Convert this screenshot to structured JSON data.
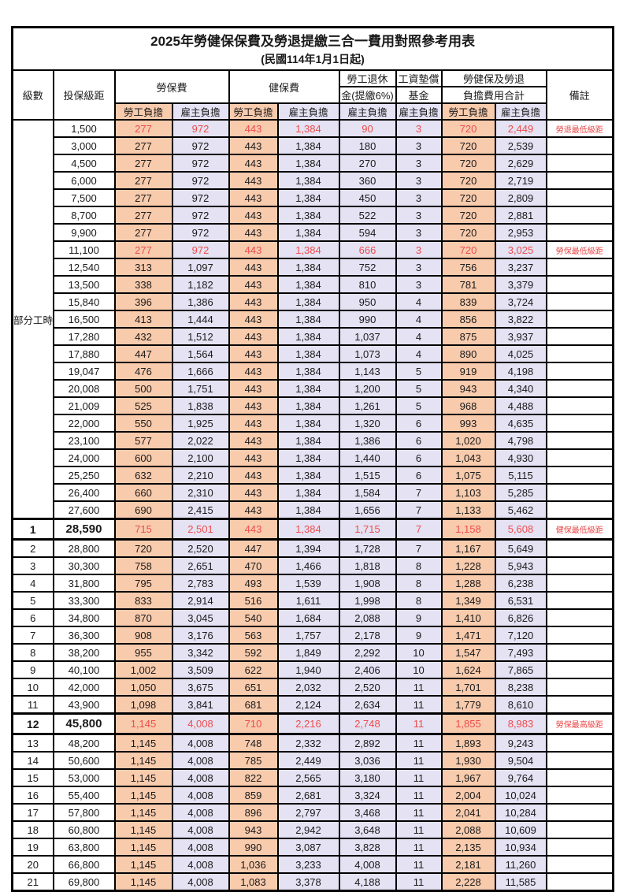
{
  "title": "2025年勞健保保費及勞退提繳三合一費用對照參考用表",
  "subtitle": "(民國114年1月1日起)",
  "colors": {
    "employee_col_bg": "#f8cbad",
    "employer_col_bg": "#e4e2f3",
    "highlight_text": "#ee4d4d",
    "border": "#000000"
  },
  "header": {
    "level": "級數",
    "bracket": "投保級距",
    "labor_insurance": "勞保費",
    "health_insurance": "健保費",
    "pension_line1": "勞工退休",
    "pension_line2": "金(提繳6%)",
    "wage_fund_line1": "工資墊償",
    "wage_fund_line2": "基金",
    "total_line1": "勞健保及勞退",
    "total_line2": "負擔費用合計",
    "remark": "備註",
    "employee_burden": "勞工負擔",
    "employer_burden": "雇主負擔"
  },
  "part_time_label": "部分工時",
  "part_time_rowspan": 23,
  "rows": [
    {
      "bracket": "1,500",
      "li_emp": "277",
      "li_er": "972",
      "hi_emp": "443",
      "hi_er": "1,384",
      "pension": "90",
      "fund": "3",
      "tot_emp": "720",
      "tot_er": "2,449",
      "remark": "勞退最低級距",
      "red": true,
      "special": false
    },
    {
      "bracket": "3,000",
      "li_emp": "277",
      "li_er": "972",
      "hi_emp": "443",
      "hi_er": "1,384",
      "pension": "180",
      "fund": "3",
      "tot_emp": "720",
      "tot_er": "2,539",
      "remark": "",
      "red": false,
      "special": false
    },
    {
      "bracket": "4,500",
      "li_emp": "277",
      "li_er": "972",
      "hi_emp": "443",
      "hi_er": "1,384",
      "pension": "270",
      "fund": "3",
      "tot_emp": "720",
      "tot_er": "2,629",
      "remark": "",
      "red": false,
      "special": false
    },
    {
      "bracket": "6,000",
      "li_emp": "277",
      "li_er": "972",
      "hi_emp": "443",
      "hi_er": "1,384",
      "pension": "360",
      "fund": "3",
      "tot_emp": "720",
      "tot_er": "2,719",
      "remark": "",
      "red": false,
      "special": false
    },
    {
      "bracket": "7,500",
      "li_emp": "277",
      "li_er": "972",
      "hi_emp": "443",
      "hi_er": "1,384",
      "pension": "450",
      "fund": "3",
      "tot_emp": "720",
      "tot_er": "2,809",
      "remark": "",
      "red": false,
      "special": false
    },
    {
      "bracket": "8,700",
      "li_emp": "277",
      "li_er": "972",
      "hi_emp": "443",
      "hi_er": "1,384",
      "pension": "522",
      "fund": "3",
      "tot_emp": "720",
      "tot_er": "2,881",
      "remark": "",
      "red": false,
      "special": false
    },
    {
      "bracket": "9,900",
      "li_emp": "277",
      "li_er": "972",
      "hi_emp": "443",
      "hi_er": "1,384",
      "pension": "594",
      "fund": "3",
      "tot_emp": "720",
      "tot_er": "2,953",
      "remark": "",
      "red": false,
      "special": false
    },
    {
      "bracket": "11,100",
      "li_emp": "277",
      "li_er": "972",
      "hi_emp": "443",
      "hi_er": "1,384",
      "pension": "666",
      "fund": "3",
      "tot_emp": "720",
      "tot_er": "3,025",
      "remark": "勞保最低級距",
      "red": true,
      "special": false
    },
    {
      "bracket": "12,540",
      "li_emp": "313",
      "li_er": "1,097",
      "hi_emp": "443",
      "hi_er": "1,384",
      "pension": "752",
      "fund": "3",
      "tot_emp": "756",
      "tot_er": "3,237",
      "remark": "",
      "red": false,
      "special": false
    },
    {
      "bracket": "13,500",
      "li_emp": "338",
      "li_er": "1,182",
      "hi_emp": "443",
      "hi_er": "1,384",
      "pension": "810",
      "fund": "3",
      "tot_emp": "781",
      "tot_er": "3,379",
      "remark": "",
      "red": false,
      "special": false
    },
    {
      "bracket": "15,840",
      "li_emp": "396",
      "li_er": "1,386",
      "hi_emp": "443",
      "hi_er": "1,384",
      "pension": "950",
      "fund": "4",
      "tot_emp": "839",
      "tot_er": "3,724",
      "remark": "",
      "red": false,
      "special": false
    },
    {
      "bracket": "16,500",
      "li_emp": "413",
      "li_er": "1,444",
      "hi_emp": "443",
      "hi_er": "1,384",
      "pension": "990",
      "fund": "4",
      "tot_emp": "856",
      "tot_er": "3,822",
      "remark": "",
      "red": false,
      "special": false
    },
    {
      "bracket": "17,280",
      "li_emp": "432",
      "li_er": "1,512",
      "hi_emp": "443",
      "hi_er": "1,384",
      "pension": "1,037",
      "fund": "4",
      "tot_emp": "875",
      "tot_er": "3,937",
      "remark": "",
      "red": false,
      "special": false
    },
    {
      "bracket": "17,880",
      "li_emp": "447",
      "li_er": "1,564",
      "hi_emp": "443",
      "hi_er": "1,384",
      "pension": "1,073",
      "fund": "4",
      "tot_emp": "890",
      "tot_er": "4,025",
      "remark": "",
      "red": false,
      "special": false
    },
    {
      "bracket": "19,047",
      "li_emp": "476",
      "li_er": "1,666",
      "hi_emp": "443",
      "hi_er": "1,384",
      "pension": "1,143",
      "fund": "5",
      "tot_emp": "919",
      "tot_er": "4,198",
      "remark": "",
      "red": false,
      "special": false
    },
    {
      "bracket": "20,008",
      "li_emp": "500",
      "li_er": "1,751",
      "hi_emp": "443",
      "hi_er": "1,384",
      "pension": "1,200",
      "fund": "5",
      "tot_emp": "943",
      "tot_er": "4,340",
      "remark": "",
      "red": false,
      "special": false
    },
    {
      "bracket": "21,009",
      "li_emp": "525",
      "li_er": "1,838",
      "hi_emp": "443",
      "hi_er": "1,384",
      "pension": "1,261",
      "fund": "5",
      "tot_emp": "968",
      "tot_er": "4,488",
      "remark": "",
      "red": false,
      "special": false
    },
    {
      "bracket": "22,000",
      "li_emp": "550",
      "li_er": "1,925",
      "hi_emp": "443",
      "hi_er": "1,384",
      "pension": "1,320",
      "fund": "6",
      "tot_emp": "993",
      "tot_er": "4,635",
      "remark": "",
      "red": false,
      "special": false
    },
    {
      "bracket": "23,100",
      "li_emp": "577",
      "li_er": "2,022",
      "hi_emp": "443",
      "hi_er": "1,384",
      "pension": "1,386",
      "fund": "6",
      "tot_emp": "1,020",
      "tot_er": "4,798",
      "remark": "",
      "red": false,
      "special": false
    },
    {
      "bracket": "24,000",
      "li_emp": "600",
      "li_er": "2,100",
      "hi_emp": "443",
      "hi_er": "1,384",
      "pension": "1,440",
      "fund": "6",
      "tot_emp": "1,043",
      "tot_er": "4,930",
      "remark": "",
      "red": false,
      "special": false
    },
    {
      "bracket": "25,250",
      "li_emp": "632",
      "li_er": "2,210",
      "hi_emp": "443",
      "hi_er": "1,384",
      "pension": "1,515",
      "fund": "6",
      "tot_emp": "1,075",
      "tot_er": "5,115",
      "remark": "",
      "red": false,
      "special": false
    },
    {
      "bracket": "26,400",
      "li_emp": "660",
      "li_er": "2,310",
      "hi_emp": "443",
      "hi_er": "1,384",
      "pension": "1,584",
      "fund": "7",
      "tot_emp": "1,103",
      "tot_er": "5,285",
      "remark": "",
      "red": false,
      "special": false
    },
    {
      "bracket": "27,600",
      "li_emp": "690",
      "li_er": "2,415",
      "hi_emp": "443",
      "hi_er": "1,384",
      "pension": "1,656",
      "fund": "7",
      "tot_emp": "1,133",
      "tot_er": "5,462",
      "remark": "",
      "red": false,
      "special": false
    },
    {
      "level": "1",
      "bracket": "28,590",
      "li_emp": "715",
      "li_er": "2,501",
      "hi_emp": "443",
      "hi_er": "1,384",
      "pension": "1,715",
      "fund": "7",
      "tot_emp": "1,158",
      "tot_er": "5,608",
      "remark": "健保最低級距",
      "red": true,
      "special": true
    },
    {
      "level": "2",
      "bracket": "28,800",
      "li_emp": "720",
      "li_er": "2,520",
      "hi_emp": "447",
      "hi_er": "1,394",
      "pension": "1,728",
      "fund": "7",
      "tot_emp": "1,167",
      "tot_er": "5,649",
      "remark": "",
      "red": false,
      "special": false
    },
    {
      "level": "3",
      "bracket": "30,300",
      "li_emp": "758",
      "li_er": "2,651",
      "hi_emp": "470",
      "hi_er": "1,466",
      "pension": "1,818",
      "fund": "8",
      "tot_emp": "1,228",
      "tot_er": "5,943",
      "remark": "",
      "red": false,
      "special": false
    },
    {
      "level": "4",
      "bracket": "31,800",
      "li_emp": "795",
      "li_er": "2,783",
      "hi_emp": "493",
      "hi_er": "1,539",
      "pension": "1,908",
      "fund": "8",
      "tot_emp": "1,288",
      "tot_er": "6,238",
      "remark": "",
      "red": false,
      "special": false
    },
    {
      "level": "5",
      "bracket": "33,300",
      "li_emp": "833",
      "li_er": "2,914",
      "hi_emp": "516",
      "hi_er": "1,611",
      "pension": "1,998",
      "fund": "8",
      "tot_emp": "1,349",
      "tot_er": "6,531",
      "remark": "",
      "red": false,
      "special": false
    },
    {
      "level": "6",
      "bracket": "34,800",
      "li_emp": "870",
      "li_er": "3,045",
      "hi_emp": "540",
      "hi_er": "1,684",
      "pension": "2,088",
      "fund": "9",
      "tot_emp": "1,410",
      "tot_er": "6,826",
      "remark": "",
      "red": false,
      "special": false
    },
    {
      "level": "7",
      "bracket": "36,300",
      "li_emp": "908",
      "li_er": "3,176",
      "hi_emp": "563",
      "hi_er": "1,757",
      "pension": "2,178",
      "fund": "9",
      "tot_emp": "1,471",
      "tot_er": "7,120",
      "remark": "",
      "red": false,
      "special": false
    },
    {
      "level": "8",
      "bracket": "38,200",
      "li_emp": "955",
      "li_er": "3,342",
      "hi_emp": "592",
      "hi_er": "1,849",
      "pension": "2,292",
      "fund": "10",
      "tot_emp": "1,547",
      "tot_er": "7,493",
      "remark": "",
      "red": false,
      "special": false
    },
    {
      "level": "9",
      "bracket": "40,100",
      "li_emp": "1,002",
      "li_er": "3,509",
      "hi_emp": "622",
      "hi_er": "1,940",
      "pension": "2,406",
      "fund": "10",
      "tot_emp": "1,624",
      "tot_er": "7,865",
      "remark": "",
      "red": false,
      "special": false
    },
    {
      "level": "10",
      "bracket": "42,000",
      "li_emp": "1,050",
      "li_er": "3,675",
      "hi_emp": "651",
      "hi_er": "2,032",
      "pension": "2,520",
      "fund": "11",
      "tot_emp": "1,701",
      "tot_er": "8,238",
      "remark": "",
      "red": false,
      "special": false
    },
    {
      "level": "11",
      "bracket": "43,900",
      "li_emp": "1,098",
      "li_er": "3,841",
      "hi_emp": "681",
      "hi_er": "2,124",
      "pension": "2,634",
      "fund": "11",
      "tot_emp": "1,779",
      "tot_er": "8,610",
      "remark": "",
      "red": false,
      "special": false
    },
    {
      "level": "12",
      "bracket": "45,800",
      "li_emp": "1,145",
      "li_er": "4,008",
      "hi_emp": "710",
      "hi_er": "2,216",
      "pension": "2,748",
      "fund": "11",
      "tot_emp": "1,855",
      "tot_er": "8,983",
      "remark": "勞保最高級距",
      "red": true,
      "special": true
    },
    {
      "level": "13",
      "bracket": "48,200",
      "li_emp": "1,145",
      "li_er": "4,008",
      "hi_emp": "748",
      "hi_er": "2,332",
      "pension": "2,892",
      "fund": "11",
      "tot_emp": "1,893",
      "tot_er": "9,243",
      "remark": "",
      "red": false,
      "special": false
    },
    {
      "level": "14",
      "bracket": "50,600",
      "li_emp": "1,145",
      "li_er": "4,008",
      "hi_emp": "785",
      "hi_er": "2,449",
      "pension": "3,036",
      "fund": "11",
      "tot_emp": "1,930",
      "tot_er": "9,504",
      "remark": "",
      "red": false,
      "special": false
    },
    {
      "level": "15",
      "bracket": "53,000",
      "li_emp": "1,145",
      "li_er": "4,008",
      "hi_emp": "822",
      "hi_er": "2,565",
      "pension": "3,180",
      "fund": "11",
      "tot_emp": "1,967",
      "tot_er": "9,764",
      "remark": "",
      "red": false,
      "special": false
    },
    {
      "level": "16",
      "bracket": "55,400",
      "li_emp": "1,145",
      "li_er": "4,008",
      "hi_emp": "859",
      "hi_er": "2,681",
      "pension": "3,324",
      "fund": "11",
      "tot_emp": "2,004",
      "tot_er": "10,024",
      "remark": "",
      "red": false,
      "special": false
    },
    {
      "level": "17",
      "bracket": "57,800",
      "li_emp": "1,145",
      "li_er": "4,008",
      "hi_emp": "896",
      "hi_er": "2,797",
      "pension": "3,468",
      "fund": "11",
      "tot_emp": "2,041",
      "tot_er": "10,284",
      "remark": "",
      "red": false,
      "special": false
    },
    {
      "level": "18",
      "bracket": "60,800",
      "li_emp": "1,145",
      "li_er": "4,008",
      "hi_emp": "943",
      "hi_er": "2,942",
      "pension": "3,648",
      "fund": "11",
      "tot_emp": "2,088",
      "tot_er": "10,609",
      "remark": "",
      "red": false,
      "special": false
    },
    {
      "level": "19",
      "bracket": "63,800",
      "li_emp": "1,145",
      "li_er": "4,008",
      "hi_emp": "990",
      "hi_er": "3,087",
      "pension": "3,828",
      "fund": "11",
      "tot_emp": "2,135",
      "tot_er": "10,934",
      "remark": "",
      "red": false,
      "special": false
    },
    {
      "level": "20",
      "bracket": "66,800",
      "li_emp": "1,145",
      "li_er": "4,008",
      "hi_emp": "1,036",
      "hi_er": "3,233",
      "pension": "4,008",
      "fund": "11",
      "tot_emp": "2,181",
      "tot_er": "11,260",
      "remark": "",
      "red": false,
      "special": false
    },
    {
      "level": "21",
      "bracket": "69,800",
      "li_emp": "1,145",
      "li_er": "4,008",
      "hi_emp": "1,083",
      "hi_er": "3,378",
      "pension": "4,188",
      "fund": "11",
      "tot_emp": "2,228",
      "tot_er": "11,585",
      "remark": "",
      "red": false,
      "special": false
    }
  ]
}
